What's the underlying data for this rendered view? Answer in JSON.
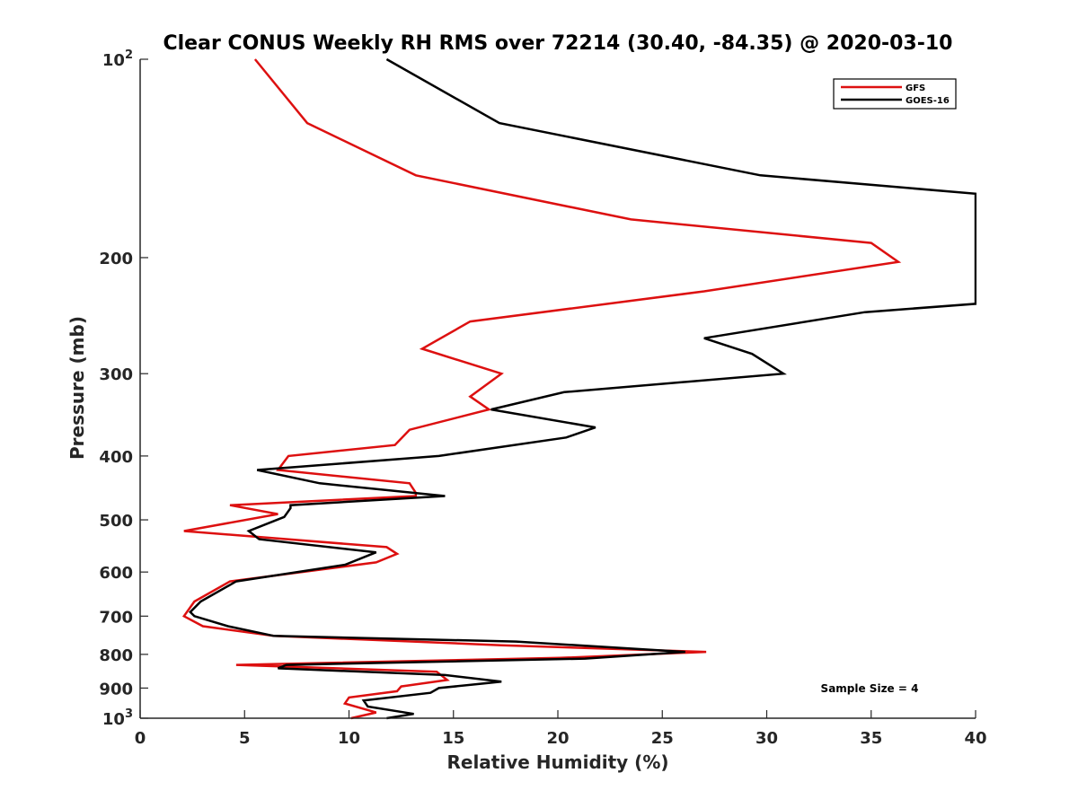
{
  "chart_data": {
    "type": "line",
    "title": "Clear CONUS Weekly RH RMS over 72214 (30.40, -84.35) @ 2020-03-10",
    "xlabel": "Relative Humidity (%)",
    "ylabel": "Pressure (mb)",
    "xlim": [
      0,
      40
    ],
    "ylim": [
      100,
      1000
    ],
    "yscale": "log",
    "y_reversed": true,
    "xticks": [
      0,
      5,
      10,
      15,
      20,
      25,
      30,
      35,
      40
    ],
    "xtick_labels": [
      "0",
      "5",
      "10",
      "15",
      "20",
      "25",
      "30",
      "35",
      "40"
    ],
    "yticks": [
      100,
      200,
      300,
      400,
      500,
      600,
      700,
      800,
      900,
      1000
    ],
    "ytick_labels": [
      {
        "base": "10",
        "exp": "2"
      },
      {
        "base": "200",
        "exp": ""
      },
      {
        "base": "300",
        "exp": ""
      },
      {
        "base": "400",
        "exp": ""
      },
      {
        "base": "500",
        "exp": ""
      },
      {
        "base": "600",
        "exp": ""
      },
      {
        "base": "700",
        "exp": ""
      },
      {
        "base": "800",
        "exp": ""
      },
      {
        "base": "900",
        "exp": ""
      },
      {
        "base": "10",
        "exp": "3"
      }
    ],
    "legend_position": "top-right",
    "annotation": "Sample Size = 4",
    "series": [
      {
        "name": "GFS",
        "color": "#dd1010",
        "points": [
          [
            5.5,
            100
          ],
          [
            8.0,
            125
          ],
          [
            13.2,
            150
          ],
          [
            23.5,
            175
          ],
          [
            35.0,
            190
          ],
          [
            36.3,
            203
          ],
          [
            27.0,
            225
          ],
          [
            15.8,
            250
          ],
          [
            13.5,
            275
          ],
          [
            17.3,
            300
          ],
          [
            15.8,
            325
          ],
          [
            16.7,
            340
          ],
          [
            12.9,
            365
          ],
          [
            12.2,
            385
          ],
          [
            7.1,
            400
          ],
          [
            6.6,
            420
          ],
          [
            12.9,
            440
          ],
          [
            13.2,
            455
          ],
          [
            13.2,
            460
          ],
          [
            4.3,
            475
          ],
          [
            6.6,
            490
          ],
          [
            2.1,
            520
          ],
          [
            11.8,
            550
          ],
          [
            12.3,
            563
          ],
          [
            11.3,
            580
          ],
          [
            4.3,
            620
          ],
          [
            2.6,
            665
          ],
          [
            2.1,
            700
          ],
          [
            3.0,
            725
          ],
          [
            6.4,
            750
          ],
          [
            17.3,
            775
          ],
          [
            27.1,
            793
          ],
          [
            20.1,
            810
          ],
          [
            4.6,
            830
          ],
          [
            14.2,
            850
          ],
          [
            14.7,
            875
          ],
          [
            12.5,
            895
          ],
          [
            12.3,
            910
          ],
          [
            10.0,
            930
          ],
          [
            9.8,
            950
          ],
          [
            11.3,
            980
          ],
          [
            10.1,
            1000
          ]
        ]
      },
      {
        "name": "GOES-16",
        "color": "#000000",
        "points": [
          [
            11.8,
            100
          ],
          [
            17.2,
            125
          ],
          [
            29.7,
            150
          ],
          [
            40.0,
            160
          ],
          [
            40.0,
            235
          ],
          [
            34.7,
            242
          ],
          [
            27.0,
            265
          ],
          [
            29.3,
            280
          ],
          [
            30.8,
            300
          ],
          [
            20.3,
            320
          ],
          [
            16.8,
            340
          ],
          [
            21.8,
            362
          ],
          [
            20.4,
            375
          ],
          [
            14.3,
            400
          ],
          [
            5.6,
            420
          ],
          [
            8.6,
            440
          ],
          [
            14.6,
            460
          ],
          [
            7.2,
            475
          ],
          [
            7.2,
            480
          ],
          [
            6.9,
            495
          ],
          [
            5.2,
            520
          ],
          [
            5.7,
            535
          ],
          [
            11.3,
            560
          ],
          [
            9.8,
            585
          ],
          [
            4.6,
            620
          ],
          [
            2.9,
            665
          ],
          [
            2.4,
            690
          ],
          [
            2.6,
            700
          ],
          [
            4.2,
            725
          ],
          [
            6.4,
            750
          ],
          [
            18.0,
            765
          ],
          [
            26.1,
            793
          ],
          [
            21.3,
            812
          ],
          [
            7.0,
            830
          ],
          [
            6.6,
            840
          ],
          [
            14.6,
            860
          ],
          [
            17.3,
            880
          ],
          [
            14.3,
            900
          ],
          [
            13.9,
            915
          ],
          [
            10.7,
            940
          ],
          [
            10.9,
            960
          ],
          [
            13.1,
            985
          ],
          [
            11.8,
            1000
          ]
        ]
      }
    ]
  }
}
